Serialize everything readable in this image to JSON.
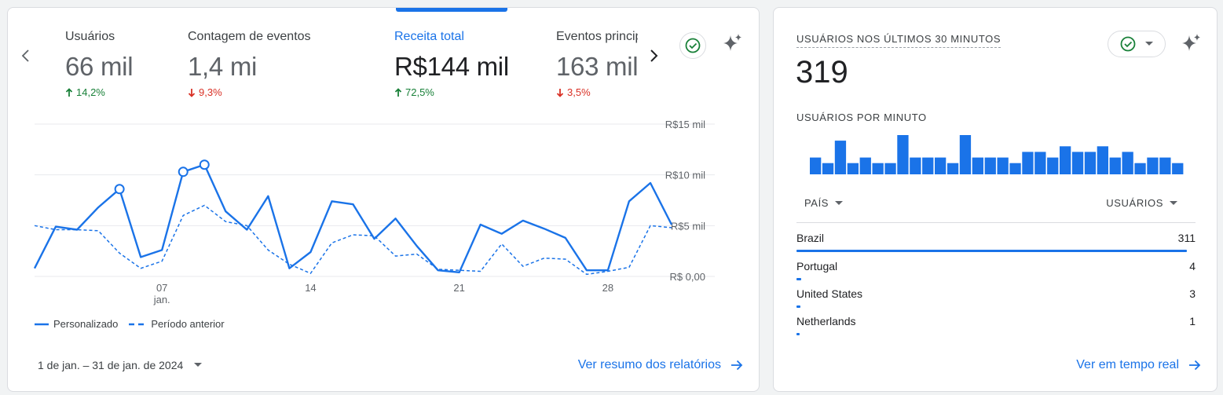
{
  "overview": {
    "metrics": [
      {
        "label": "Usuários",
        "value": "66 mil",
        "change": "14,2%",
        "direction": "up"
      },
      {
        "label": "Contagem de eventos",
        "value": "1,4 mi",
        "change": "9,3%",
        "direction": "down"
      },
      {
        "label": "Receita total",
        "value": "R$144 mil",
        "change": "72,5%",
        "direction": "up"
      },
      {
        "label": "Eventos principais",
        "value": "163 mil",
        "change": "3,5%",
        "direction": "down"
      }
    ],
    "legend": {
      "current": "Personalizado",
      "previous": "Período anterior"
    },
    "date_range": "1 de jan. – 31 de jan. de 2024",
    "view_reports_link": "Ver resumo dos relatórios"
  },
  "chart_data": {
    "type": "line",
    "x": [
      "1",
      "2",
      "3",
      "4",
      "5",
      "6",
      "7",
      "8",
      "9",
      "10",
      "11",
      "12",
      "13",
      "14",
      "15",
      "16",
      "17",
      "18",
      "19",
      "20",
      "21",
      "22",
      "23",
      "24",
      "25",
      "26",
      "27",
      "28",
      "29",
      "30",
      "31"
    ],
    "x_ticks": [
      {
        "day": "7",
        "label": "07",
        "sublabel": "jan."
      },
      {
        "day": "14",
        "label": "14",
        "sublabel": ""
      },
      {
        "day": "21",
        "label": "21",
        "sublabel": ""
      },
      {
        "day": "28",
        "label": "28",
        "sublabel": ""
      }
    ],
    "y_ticks": [
      {
        "value": 0,
        "label": "R$ 0,00"
      },
      {
        "value": 5000,
        "label": "R$5 mil"
      },
      {
        "value": 10000,
        "label": "R$10 mil"
      },
      {
        "value": 15000,
        "label": "R$15 mil"
      }
    ],
    "ylim": [
      0,
      15000
    ],
    "series": [
      {
        "name": "Personalizado",
        "values": [
          800,
          4900,
          4600,
          6800,
          8600,
          1900,
          2600,
          10300,
          11000,
          6400,
          4600,
          7900,
          800,
          2400,
          7400,
          7100,
          3700,
          5700,
          3000,
          600,
          400,
          5100,
          4200,
          5500,
          4700,
          3800,
          600,
          600,
          7400,
          9200,
          5100
        ]
      },
      {
        "name": "Período anterior",
        "values": [
          5000,
          4600,
          4600,
          4500,
          2300,
          800,
          1500,
          6000,
          7000,
          5400,
          5000,
          2600,
          1200,
          300,
          3300,
          4100,
          4000,
          2000,
          2200,
          700,
          600,
          500,
          3200,
          1000,
          1800,
          1700,
          200,
          500,
          900,
          5000,
          4800
        ]
      }
    ],
    "highlight_days": [
      "5",
      "8",
      "9"
    ],
    "grid": true
  },
  "realtime": {
    "title": "USUÁRIOS NOS ÚLTIMOS 30 MINUTOS",
    "count": "319",
    "per_minute_title": "USUÁRIOS POR MINUTO",
    "per_minute": [
      3,
      2,
      6,
      2,
      3,
      2,
      2,
      7,
      3,
      3,
      3,
      2,
      7,
      3,
      3,
      3,
      2,
      4,
      4,
      3,
      5,
      4,
      4,
      5,
      3,
      4,
      2,
      3,
      3,
      2
    ],
    "table_headers": {
      "country": "PAÍS",
      "users": "USUÁRIOS"
    },
    "rows": [
      {
        "country": "Brazil",
        "users": "311",
        "fraction": 1.0
      },
      {
        "country": "Portugal",
        "users": "4",
        "fraction": 0.013
      },
      {
        "country": "United States",
        "users": "3",
        "fraction": 0.01
      },
      {
        "country": "Netherlands",
        "users": "1",
        "fraction": 0.004
      }
    ],
    "realtime_link": "Ver em tempo real"
  },
  "colors": {
    "accent": "#1a73e8",
    "up": "#188038",
    "down": "#d93025"
  },
  "icons": {
    "prev": "chevron-left-icon",
    "next": "chevron-right-icon",
    "check": "check-circle-icon",
    "sparkle": "sparkle-icon",
    "dropdown": "arrow-drop-down-icon",
    "arrow": "arrow-right-icon"
  }
}
